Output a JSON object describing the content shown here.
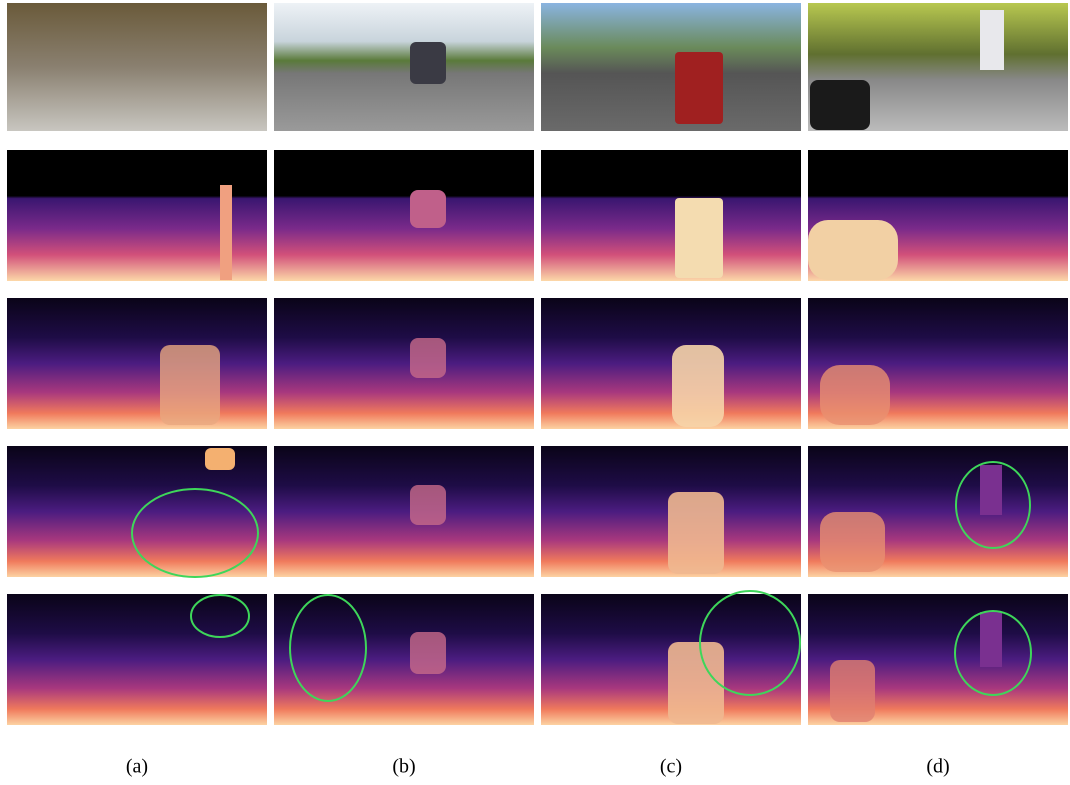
{
  "panel_labels": [
    "(a)",
    "(b)",
    "(c)",
    "(d)"
  ]
}
